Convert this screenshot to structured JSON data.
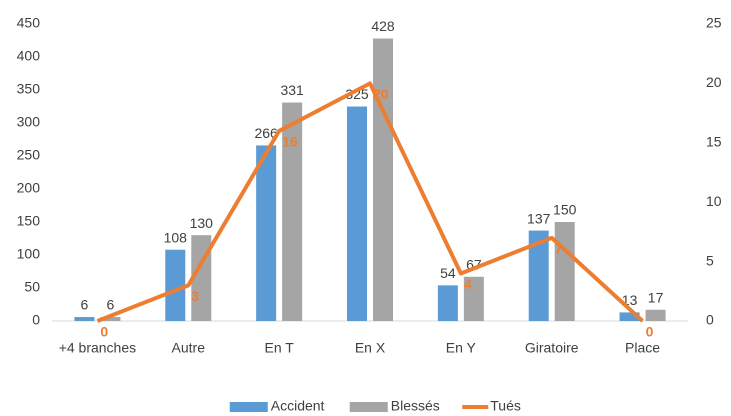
{
  "chart_data": {
    "type": "combo",
    "categories": [
      "+4 branches",
      "Autre",
      "En T",
      "En X",
      "En Y",
      "Giratoire",
      "Place"
    ],
    "series": [
      {
        "name": "Accident",
        "type": "bar",
        "color": "#5b9bd5",
        "values": [
          6,
          108,
          266,
          325,
          54,
          137,
          13
        ]
      },
      {
        "name": "Blessés",
        "type": "bar",
        "color": "#a5a5a5",
        "values": [
          6,
          130,
          331,
          428,
          67,
          150,
          17
        ]
      },
      {
        "name": "Tués",
        "type": "line",
        "axis": "y2",
        "color": "#ed7d31",
        "values": [
          0,
          3,
          16,
          20,
          4,
          7,
          0
        ]
      }
    ],
    "ylim": [
      0,
      450
    ],
    "yticks": [
      0,
      50,
      100,
      150,
      200,
      250,
      300,
      350,
      400,
      450
    ],
    "y2lim": [
      0,
      25
    ],
    "y2ticks": [
      0,
      5,
      10,
      15,
      20,
      25
    ],
    "grid": false,
    "legend": "bottom"
  }
}
